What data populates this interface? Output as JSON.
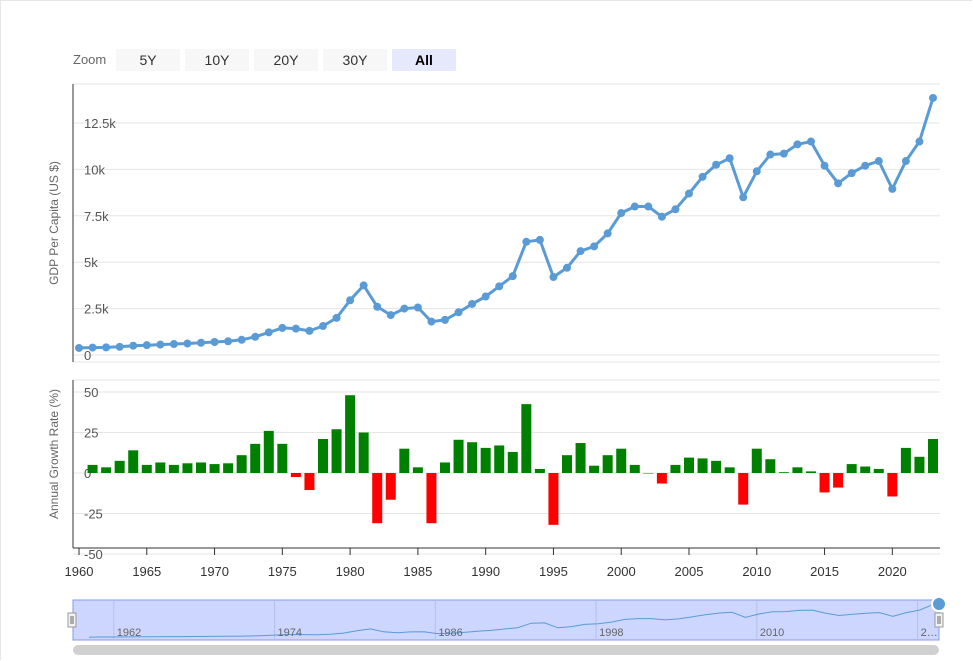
{
  "zoom": {
    "label": "Zoom",
    "buttons": [
      {
        "label": "5Y",
        "active": false
      },
      {
        "label": "10Y",
        "active": false
      },
      {
        "label": "20Y",
        "active": false
      },
      {
        "label": "30Y",
        "active": false
      },
      {
        "label": "All",
        "active": true
      }
    ]
  },
  "chart_data": [
    {
      "type": "line",
      "ylabel": "GDP Per Capita (US $)",
      "yticks": [
        "0",
        "2.5k",
        "5k",
        "7.5k",
        "10k",
        "12.5k"
      ],
      "ylim": [
        0,
        14000
      ],
      "color": "#5b9bd5",
      "x": [
        1960,
        1961,
        1962,
        1963,
        1964,
        1965,
        1966,
        1967,
        1968,
        1969,
        1970,
        1971,
        1972,
        1973,
        1974,
        1975,
        1976,
        1977,
        1978,
        1979,
        1980,
        1981,
        1982,
        1983,
        1984,
        1985,
        1986,
        1987,
        1988,
        1989,
        1990,
        1991,
        1992,
        1993,
        1994,
        1995,
        1996,
        1997,
        1998,
        1999,
        2000,
        2001,
        2002,
        2003,
        2004,
        2005,
        2006,
        2007,
        2008,
        2009,
        2010,
        2011,
        2012,
        2013,
        2014,
        2015,
        2016,
        2017,
        2018,
        2019,
        2020,
        2021,
        2022,
        2023
      ],
      "values": [
        380,
        400,
        410,
        440,
        500,
        530,
        560,
        590,
        620,
        660,
        700,
        740,
        820,
        980,
        1220,
        1460,
        1420,
        1300,
        1560,
        2000,
        2950,
        3750,
        2600,
        2150,
        2500,
        2560,
        1800,
        1890,
        2300,
        2750,
        3150,
        3700,
        4250,
        6100,
        6200,
        4200,
        4700,
        5600,
        5850,
        6550,
        7650,
        8000,
        8000,
        7450,
        7850,
        8700,
        9600,
        10250,
        10600,
        8500,
        9900,
        10800,
        10850,
        11350,
        11500,
        10200,
        9250,
        9800,
        10200,
        10450,
        8950,
        10450,
        11500,
        13850
      ]
    },
    {
      "type": "bar",
      "ylabel": "Annual Growth Rate (%)",
      "yticks": [
        "-50",
        "-25",
        "0",
        "25",
        "50"
      ],
      "ylim": [
        -55,
        60
      ],
      "positive_color": "#008000",
      "negative_color": "#ff0000",
      "x": [
        1961,
        1962,
        1963,
        1964,
        1965,
        1966,
        1967,
        1968,
        1969,
        1970,
        1971,
        1972,
        1973,
        1974,
        1975,
        1976,
        1977,
        1978,
        1979,
        1980,
        1981,
        1982,
        1983,
        1984,
        1985,
        1986,
        1987,
        1988,
        1989,
        1990,
        1991,
        1992,
        1993,
        1994,
        1995,
        1996,
        1997,
        1998,
        1999,
        2000,
        2001,
        2002,
        2003,
        2004,
        2005,
        2006,
        2007,
        2008,
        2009,
        2010,
        2011,
        2012,
        2013,
        2014,
        2015,
        2016,
        2017,
        2018,
        2019,
        2020,
        2021,
        2022,
        2023
      ],
      "values": [
        5,
        3.5,
        7.5,
        14,
        5,
        6.5,
        5,
        6,
        6.5,
        5.5,
        6,
        11,
        18,
        26,
        18,
        -2.5,
        -10.5,
        21,
        27,
        48,
        25,
        -31,
        -16.5,
        15,
        3.5,
        -31,
        6.5,
        20.5,
        19,
        15.5,
        17,
        13,
        42.5,
        2.5,
        -32,
        11,
        18.5,
        4.5,
        11,
        15,
        5,
        0,
        -6.5,
        5,
        9.5,
        9,
        7.5,
        3.5,
        -19.5,
        15,
        8.5,
        0.5,
        3.5,
        1,
        -12,
        -9,
        5.5,
        4,
        2.5,
        -14.5,
        15.5,
        10,
        21
      ]
    }
  ],
  "x_axis": {
    "ticks": [
      "1960",
      "1965",
      "1970",
      "1975",
      "1980",
      "1985",
      "1990",
      "1995",
      "2000",
      "2005",
      "2010",
      "2015",
      "2020"
    ]
  },
  "navigator": {
    "labels": [
      "1962",
      "1974",
      "1986",
      "1998",
      "2010",
      "2…"
    ]
  }
}
